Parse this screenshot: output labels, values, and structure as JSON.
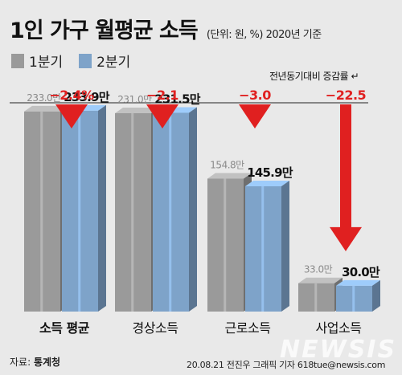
{
  "title": "1인 가구 월평균 소득",
  "subtitle": "(단위: 원, %) 2020년 기준",
  "note": "전년동기대비 증감률",
  "source_label": "자료:",
  "source_value": "통계청",
  "credit": "20.08.21 전진우 그래픽 기자 618tue@newsis.com",
  "watermark": "NEWSIS",
  "colors": {
    "q1": "#9a9a9a",
    "q2": "#7ea3c9",
    "arrow": "#e02020",
    "change_text": "#e02020"
  },
  "chart_data": {
    "type": "bar",
    "categories": [
      "소득 평균",
      "경상소득",
      "근로소득",
      "사업소득"
    ],
    "series": [
      {
        "name": "1분기",
        "values": [
          233.0,
          231.0,
          154.8,
          33.0
        ],
        "labels": [
          "233.0만",
          "231.0만",
          "154.8만",
          "33.0만"
        ]
      },
      {
        "name": "2분기",
        "values": [
          233.9,
          231.5,
          145.9,
          30.0
        ],
        "labels": [
          "233.9만",
          "231.5만",
          "145.9만",
          "30.0만"
        ]
      }
    ],
    "change": [
      -2.4,
      -2.1,
      -3.0,
      -22.5
    ],
    "change_labels": [
      "−2.4%",
      "−2.1",
      "−3.0",
      "−22.5"
    ],
    "ylim": [
      0,
      260
    ]
  }
}
